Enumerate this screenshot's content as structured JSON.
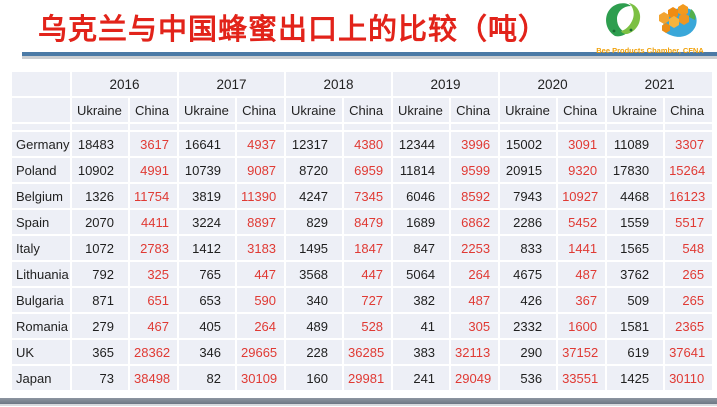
{
  "title": {
    "text": "乌克兰与中国蜂蜜出口上的比较（吨）",
    "color": "#e2231a"
  },
  "logos": {
    "caption": "Bee Products Chamber, CFNA",
    "caption_color": "#f0a10a",
    "left_logo": "cfna-green-swan-logo",
    "right_logo": "honeycomb-globe-logo"
  },
  "colors": {
    "ukraine_value": "#1f1f1f",
    "china_value": "#e03a34",
    "cell_background": "#edeff6",
    "title_underline": "#4b7aa6",
    "bottom_bar": "#77818d"
  },
  "table": {
    "years": [
      "2016",
      "2017",
      "2018",
      "2019",
      "2020",
      "2021"
    ],
    "sub_headers": [
      "Ukraine",
      "China"
    ],
    "rows": [
      {
        "country": "Germany",
        "values": [
          18483,
          3617,
          16641,
          4937,
          12317,
          4380,
          12344,
          3996,
          15002,
          3091,
          11089,
          3307
        ]
      },
      {
        "country": "Poland",
        "values": [
          10902,
          4991,
          10739,
          9087,
          8720,
          6959,
          11814,
          9599,
          20915,
          9320,
          17830,
          15264
        ]
      },
      {
        "country": "Belgium",
        "values": [
          1326,
          11754,
          3819,
          11390,
          4247,
          7345,
          6046,
          8592,
          7943,
          10927,
          4468,
          16123
        ]
      },
      {
        "country": "Spain",
        "values": [
          2070,
          4411,
          3224,
          8897,
          829,
          8479,
          1689,
          6862,
          2286,
          5452,
          1559,
          5517
        ]
      },
      {
        "country": "Italy",
        "values": [
          1072,
          2783,
          1412,
          3183,
          1495,
          1847,
          847,
          2253,
          833,
          1441,
          1565,
          548
        ]
      },
      {
        "country": "Lithuania",
        "values": [
          792,
          325,
          765,
          447,
          3568,
          447,
          5064,
          264,
          4675,
          487,
          3762,
          265
        ]
      },
      {
        "country": "Bulgaria",
        "values": [
          871,
          651,
          653,
          590,
          340,
          727,
          382,
          487,
          426,
          367,
          509,
          265
        ]
      },
      {
        "country": "Romania",
        "values": [
          279,
          467,
          405,
          264,
          489,
          528,
          41,
          305,
          2332,
          1600,
          1581,
          2365
        ]
      },
      {
        "country": "UK",
        "values": [
          365,
          28362,
          346,
          29665,
          228,
          36285,
          383,
          32113,
          290,
          37152,
          619,
          37641
        ]
      },
      {
        "country": "Japan",
        "values": [
          73,
          38498,
          82,
          30109,
          160,
          29981,
          241,
          29049,
          536,
          33551,
          1425,
          30110
        ]
      }
    ]
  }
}
